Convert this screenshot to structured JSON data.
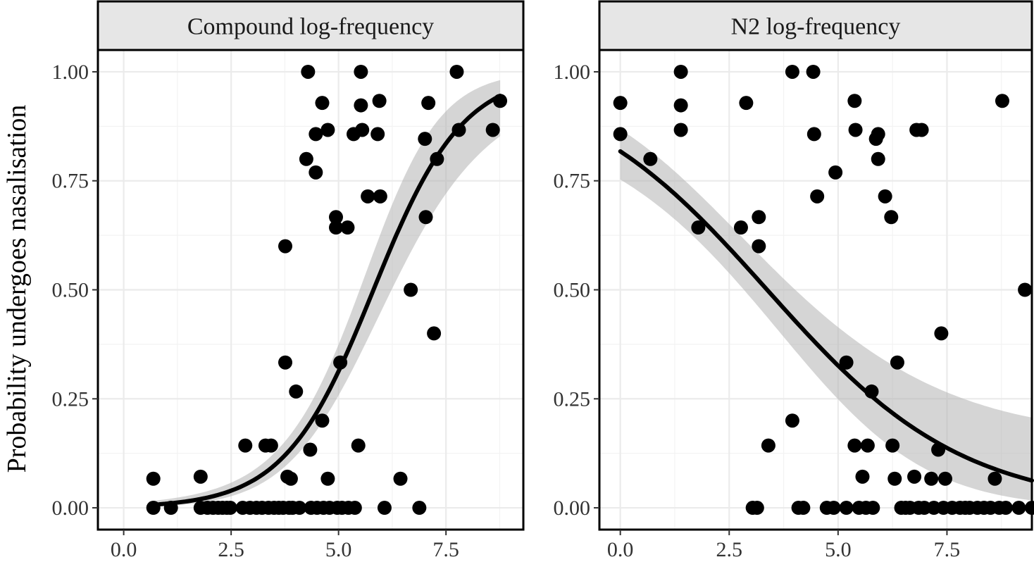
{
  "chart_data": [
    {
      "type": "scatter",
      "title": "Compound log-frequency",
      "xlabel": "",
      "ylabel": "Probability undergoes nasalisation",
      "xlim": [
        -0.6,
        9.3
      ],
      "ylim": [
        -0.05,
        1.05
      ],
      "x_ticks": [
        0.0,
        2.5,
        5.0,
        7.5
      ],
      "x_tick_labels": [
        "0.0",
        "2.5",
        "5.0",
        "7.5"
      ],
      "y_ticks": [
        0.0,
        0.25,
        0.5,
        0.75,
        1.0
      ],
      "y_tick_labels": [
        "0.00",
        "0.25",
        "0.50",
        "0.75",
        "1.00"
      ],
      "grid": true,
      "points": [
        {
          "x": 0.69,
          "y": 0.0667
        },
        {
          "x": 0.69,
          "y": 0.0
        },
        {
          "x": 1.1,
          "y": 0.0
        },
        {
          "x": 1.79,
          "y": 0.0714
        },
        {
          "x": 1.79,
          "y": 0.0
        },
        {
          "x": 1.95,
          "y": 0.0
        },
        {
          "x": 2.08,
          "y": 0.0
        },
        {
          "x": 2.2,
          "y": 0.0
        },
        {
          "x": 2.3,
          "y": 0.0
        },
        {
          "x": 2.4,
          "y": 0.0
        },
        {
          "x": 2.48,
          "y": 0.0
        },
        {
          "x": 2.83,
          "y": 0.1429
        },
        {
          "x": 2.77,
          "y": 0.0
        },
        {
          "x": 2.94,
          "y": 0.0
        },
        {
          "x": 3.09,
          "y": 0.0
        },
        {
          "x": 3.22,
          "y": 0.0
        },
        {
          "x": 3.3,
          "y": 0.1429
        },
        {
          "x": 3.37,
          "y": 0.0
        },
        {
          "x": 3.43,
          "y": 0.1429
        },
        {
          "x": 3.5,
          "y": 0.0
        },
        {
          "x": 3.61,
          "y": 0.0
        },
        {
          "x": 3.71,
          "y": 0.0
        },
        {
          "x": 3.76,
          "y": 0.6
        },
        {
          "x": 3.76,
          "y": 0.3333
        },
        {
          "x": 3.81,
          "y": 0.0714
        },
        {
          "x": 3.85,
          "y": 0.0
        },
        {
          "x": 3.89,
          "y": 0.0667
        },
        {
          "x": 3.93,
          "y": 0.0
        },
        {
          "x": 4.01,
          "y": 0.2667
        },
        {
          "x": 4.09,
          "y": 0.0
        },
        {
          "x": 4.25,
          "y": 0.8
        },
        {
          "x": 4.29,
          "y": 1.0
        },
        {
          "x": 4.34,
          "y": 0.1333
        },
        {
          "x": 4.36,
          "y": 0.0
        },
        {
          "x": 4.47,
          "y": 0.8571
        },
        {
          "x": 4.47,
          "y": 0.7692
        },
        {
          "x": 4.5,
          "y": 0.0
        },
        {
          "x": 4.62,
          "y": 0.9286
        },
        {
          "x": 4.62,
          "y": 0.2
        },
        {
          "x": 4.65,
          "y": 0.0
        },
        {
          "x": 4.75,
          "y": 0.8667
        },
        {
          "x": 4.75,
          "y": 0.0667
        },
        {
          "x": 4.79,
          "y": 0.0
        },
        {
          "x": 4.94,
          "y": 0.6667
        },
        {
          "x": 4.94,
          "y": 0.6429
        },
        {
          "x": 4.97,
          "y": 0.0
        },
        {
          "x": 5.04,
          "y": 0.3333
        },
        {
          "x": 5.08,
          "y": 0.0
        },
        {
          "x": 5.21,
          "y": 0.6429
        },
        {
          "x": 5.23,
          "y": 0.0
        },
        {
          "x": 5.35,
          "y": 0.8571
        },
        {
          "x": 5.38,
          "y": 0.0
        },
        {
          "x": 5.46,
          "y": 0.1429
        },
        {
          "x": 5.52,
          "y": 1.0
        },
        {
          "x": 5.52,
          "y": 0.9231
        },
        {
          "x": 5.55,
          "y": 0.8667
        },
        {
          "x": 5.68,
          "y": 0.7143
        },
        {
          "x": 5.91,
          "y": 0.8571
        },
        {
          "x": 5.95,
          "y": 0.9333
        },
        {
          "x": 5.97,
          "y": 0.7143
        },
        {
          "x": 6.07,
          "y": 0.0
        },
        {
          "x": 6.44,
          "y": 0.0667
        },
        {
          "x": 6.68,
          "y": 0.5
        },
        {
          "x": 6.88,
          "y": 0.0
        },
        {
          "x": 7.01,
          "y": 0.8462
        },
        {
          "x": 7.03,
          "y": 0.6667
        },
        {
          "x": 7.09,
          "y": 0.9286
        },
        {
          "x": 7.22,
          "y": 0.4
        },
        {
          "x": 7.29,
          "y": 0.8
        },
        {
          "x": 7.75,
          "y": 1.0
        },
        {
          "x": 7.8,
          "y": 0.8667
        },
        {
          "x": 8.59,
          "y": 0.8667
        },
        {
          "x": 8.76,
          "y": 0.9333
        }
      ],
      "fit": {
        "intercept": -5.61,
        "slope": 0.965,
        "x_start": 0.69,
        "x_end": 8.76,
        "se_base": 0.13,
        "se_scale": 0.022
      }
    },
    {
      "type": "scatter",
      "title": "N2 log-frequency",
      "xlabel": "",
      "ylabel": "",
      "xlim": [
        -0.48,
        9.45
      ],
      "ylim": [
        -0.05,
        1.05
      ],
      "x_ticks": [
        0.0,
        2.5,
        5.0,
        7.5
      ],
      "x_tick_labels": [
        "0.0",
        "2.5",
        "5.0",
        "7.5"
      ],
      "y_ticks": [
        0.0,
        0.25,
        0.5,
        0.75,
        1.0
      ],
      "y_tick_labels": [
        "0.00",
        "0.25",
        "0.50",
        "0.75",
        "1.00"
      ],
      "grid": true,
      "points": [
        {
          "x": 0.0,
          "y": 0.9286
        },
        {
          "x": 0.0,
          "y": 0.8571
        },
        {
          "x": 0.69,
          "y": 0.8
        },
        {
          "x": 1.39,
          "y": 1.0
        },
        {
          "x": 1.39,
          "y": 0.9231
        },
        {
          "x": 1.39,
          "y": 0.8667
        },
        {
          "x": 1.79,
          "y": 0.6429
        },
        {
          "x": 2.77,
          "y": 0.6429
        },
        {
          "x": 2.89,
          "y": 0.9286
        },
        {
          "x": 3.04,
          "y": 0.0
        },
        {
          "x": 3.14,
          "y": 0.0
        },
        {
          "x": 3.18,
          "y": 0.6667
        },
        {
          "x": 3.18,
          "y": 0.6
        },
        {
          "x": 3.4,
          "y": 0.1429
        },
        {
          "x": 3.95,
          "y": 1.0
        },
        {
          "x": 3.95,
          "y": 0.2
        },
        {
          "x": 4.09,
          "y": 0.0
        },
        {
          "x": 4.2,
          "y": 0.0
        },
        {
          "x": 4.43,
          "y": 1.0
        },
        {
          "x": 4.45,
          "y": 0.8571
        },
        {
          "x": 4.52,
          "y": 0.7143
        },
        {
          "x": 4.74,
          "y": 0.0
        },
        {
          "x": 4.9,
          "y": 0.0
        },
        {
          "x": 4.94,
          "y": 0.7692
        },
        {
          "x": 5.19,
          "y": 0.0
        },
        {
          "x": 5.19,
          "y": 0.3333
        },
        {
          "x": 5.38,
          "y": 0.9333
        },
        {
          "x": 5.4,
          "y": 0.8667
        },
        {
          "x": 5.38,
          "y": 0.1429
        },
        {
          "x": 5.48,
          "y": 0.0
        },
        {
          "x": 5.56,
          "y": 0.0714
        },
        {
          "x": 5.64,
          "y": 0.0
        },
        {
          "x": 5.68,
          "y": 0.1429
        },
        {
          "x": 5.77,
          "y": 0.2667
        },
        {
          "x": 5.8,
          "y": 0.0
        },
        {
          "x": 5.87,
          "y": 0.8462
        },
        {
          "x": 5.92,
          "y": 0.8571
        },
        {
          "x": 5.92,
          "y": 0.8
        },
        {
          "x": 6.08,
          "y": 0.7143
        },
        {
          "x": 6.22,
          "y": 0.6667
        },
        {
          "x": 6.25,
          "y": 0.1429
        },
        {
          "x": 6.3,
          "y": 0.0667
        },
        {
          "x": 6.36,
          "y": 0.3333
        },
        {
          "x": 6.45,
          "y": 0.0
        },
        {
          "x": 6.55,
          "y": 0.0
        },
        {
          "x": 6.65,
          "y": 0.0
        },
        {
          "x": 6.75,
          "y": 0.0714
        },
        {
          "x": 6.8,
          "y": 0.8667
        },
        {
          "x": 6.92,
          "y": 0.8667
        },
        {
          "x": 6.85,
          "y": 0.0
        },
        {
          "x": 6.98,
          "y": 0.0
        },
        {
          "x": 7.14,
          "y": 0.0667
        },
        {
          "x": 7.2,
          "y": 0.0
        },
        {
          "x": 7.3,
          "y": 0.1333
        },
        {
          "x": 7.37,
          "y": 0.4
        },
        {
          "x": 7.42,
          "y": 0.0
        },
        {
          "x": 7.46,
          "y": 0.0667
        },
        {
          "x": 7.62,
          "y": 0.0
        },
        {
          "x": 7.8,
          "y": 0.0
        },
        {
          "x": 7.92,
          "y": 0.0
        },
        {
          "x": 8.02,
          "y": 0.0
        },
        {
          "x": 8.2,
          "y": 0.0
        },
        {
          "x": 8.35,
          "y": 0.0
        },
        {
          "x": 8.5,
          "y": 0.0
        },
        {
          "x": 8.6,
          "y": 0.0667
        },
        {
          "x": 8.7,
          "y": 0.0
        },
        {
          "x": 8.77,
          "y": 0.9333
        },
        {
          "x": 8.85,
          "y": 0.0
        },
        {
          "x": 9.15,
          "y": 0.0
        },
        {
          "x": 9.29,
          "y": 0.5
        },
        {
          "x": 9.45,
          "y": 0.0
        }
      ],
      "fit": {
        "intercept": 1.5,
        "slope": -0.445,
        "x_start": 0.0,
        "x_end": 9.45,
        "se_base": 0.12,
        "se_scale": 0.012
      }
    }
  ]
}
